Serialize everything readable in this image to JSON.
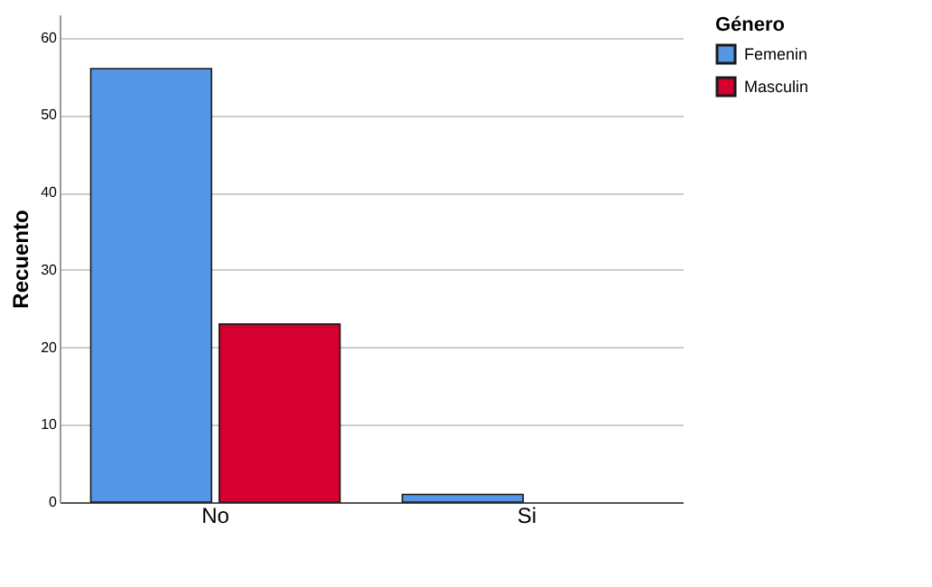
{
  "chart_data": {
    "type": "bar",
    "ylabel": "Recuento",
    "legend_title": "Género",
    "categories": [
      "No",
      "Si"
    ],
    "series": [
      {
        "name": "Femenin",
        "color": "#5596e6",
        "values": [
          56,
          1
        ]
      },
      {
        "name": "Masculin",
        "color": "#d5002f",
        "values": [
          23,
          0
        ]
      }
    ],
    "ylim": [
      0,
      63
    ],
    "yticks": [
      0,
      10,
      20,
      30,
      40,
      50,
      60
    ],
    "grid": "y",
    "legend": "top right"
  }
}
